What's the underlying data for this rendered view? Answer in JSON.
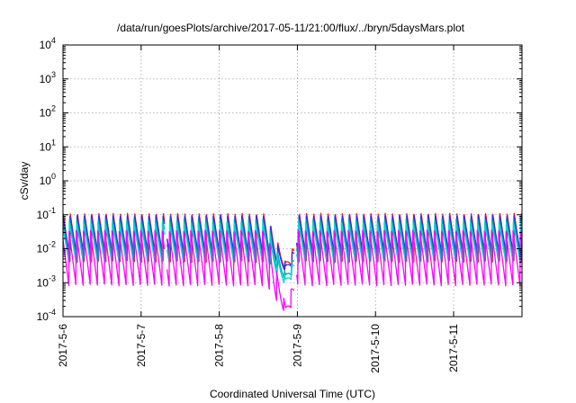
{
  "chart_data": {
    "type": "line",
    "title": "/data/run/goesPlots/archive/2017-05-11/21:00/flux/../bryn/5daysMars.plot",
    "xlabel": "Coordinated Universal Time (UTC)",
    "ylabel": "cSv/day",
    "yscale": "log",
    "ylim": [
      0.0001,
      10000
    ],
    "xlim": [
      "2017-05-06 00:00",
      "2017-05-11 21:00"
    ],
    "xticks": [
      {
        "label": "2017-5-6",
        "day": 0
      },
      {
        "label": "2017-5-7",
        "day": 1
      },
      {
        "label": "2017-5-8",
        "day": 2
      },
      {
        "label": "2017-5-9",
        "day": 3
      },
      {
        "label": "2017-5-10",
        "day": 4
      },
      {
        "label": "2017-5-11",
        "day": 5
      }
    ],
    "yticks": [
      {
        "base": "10",
        "exp": "-4",
        "value": 0.0001
      },
      {
        "base": "10",
        "exp": "-3",
        "value": 0.001
      },
      {
        "base": "10",
        "exp": "-2",
        "value": 0.01
      },
      {
        "base": "10",
        "exp": "-1",
        "value": 0.1
      },
      {
        "base": "10",
        "exp": "0",
        "value": 1
      },
      {
        "base": "10",
        "exp": "1",
        "value": 10
      },
      {
        "base": "10",
        "exp": "2",
        "value": 100
      },
      {
        "base": "10",
        "exp": "3",
        "value": 1000
      },
      {
        "base": "10",
        "exp": "4",
        "value": 10000
      }
    ],
    "grid": true,
    "legend": false,
    "pattern": {
      "description_units": "values in cSv/day, periodic sawtooth with ~2.2 h period",
      "period_hours": 2.2,
      "dip_start_day": 2.6,
      "dip_min_day": 2.85,
      "dip_end_day": 2.96,
      "gaps_days": [
        [
          1.3,
          1.33
        ],
        [
          2.96,
          2.99
        ]
      ]
    },
    "series": [
      {
        "color": "#e41a1c",
        "peak": 0.11,
        "trough": 0.004,
        "dip_min": 0.0025
      },
      {
        "color": "#2a2af5",
        "peak": 0.095,
        "trough": 0.006,
        "dip_min": 0.0022
      },
      {
        "color": "#00a0a0",
        "peak": 0.075,
        "trough": 0.0045,
        "dip_min": 0.0012
      },
      {
        "color": "#00d8d8",
        "peak": 0.06,
        "trough": 0.0035,
        "dip_min": 0.0009
      },
      {
        "color": "#ff00ff",
        "peak": 0.035,
        "trough": 0.0008,
        "dip_min": 0.00012
      }
    ]
  }
}
